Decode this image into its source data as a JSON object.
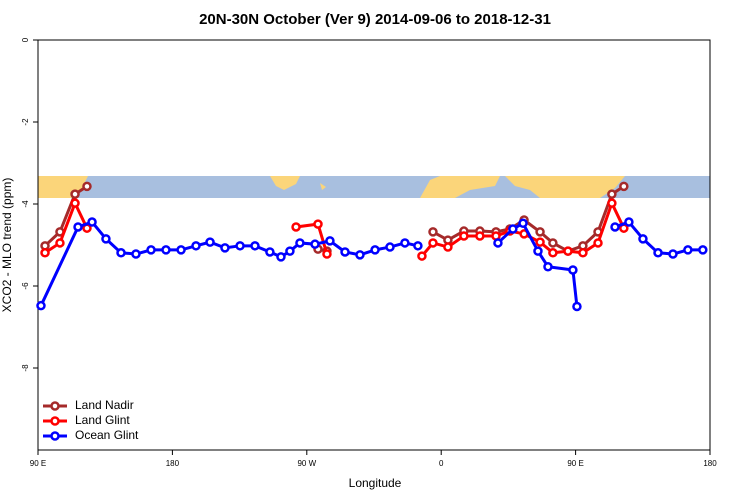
{
  "chart_data": {
    "type": "line",
    "title": "20N-30N October (Ver 9)   2014-09-06 to 2018-12-31",
    "xlabel": "Longitude",
    "ylabel": "XCO2 - MLO trend (ppm)",
    "xlim": [
      90,
      540
    ],
    "xticks": [
      {
        "value": 90,
        "label": "90 E"
      },
      {
        "value": 180,
        "label": "180"
      },
      {
        "value": 270,
        "label": "90 W"
      },
      {
        "value": 360,
        "label": "0"
      },
      {
        "value": 450,
        "label": "90 E"
      },
      {
        "value": 540,
        "label": "180"
      }
    ],
    "ylim": [
      -10,
      0
    ],
    "yticks": [
      0,
      -2,
      -4,
      -6,
      -8
    ],
    "legend": "bottom-left",
    "series": [
      {
        "name": "Land Nadir",
        "color": "#a52a2a",
        "x": [
          94.7,
          104.7,
          114.8,
          122.8,
          200,
          277.5,
          283.5,
          300,
          354.5,
          364.5,
          375.2,
          385.9,
          396.7,
          406,
          415.5,
          426.2,
          434.8,
          444.9,
          454.9,
          465,
          474.3,
          482.3
        ],
        "values": [
          -5.02,
          -4.68,
          -3.76,
          -3.57,
          null,
          -5.1,
          -5.15,
          null,
          -4.68,
          -4.88,
          -4.66,
          -4.66,
          -4.68,
          -4.61,
          -4.39,
          -4.68,
          -4.95,
          -5.15,
          -5.02,
          -4.68,
          -3.76,
          -3.57
        ]
      },
      {
        "name": "Land Glint",
        "color": "#ff0000",
        "x": [
          94.7,
          104.7,
          114.8,
          122.8,
          200,
          262.8,
          277.5,
          283.5,
          320,
          347.1,
          354.5,
          364.5,
          375.2,
          385.9,
          396.7,
          406,
          415.5,
          426.2,
          434.8,
          444.9,
          454.9,
          465,
          474.3,
          482.3
        ],
        "values": [
          -5.19,
          -4.95,
          -3.98,
          -4.59,
          null,
          -4.56,
          -4.49,
          -5.22,
          null,
          -5.27,
          -4.95,
          -5.05,
          -4.78,
          -4.78,
          -4.78,
          -4.66,
          -4.73,
          -4.93,
          -5.19,
          -5.15,
          -5.19,
          -4.95,
          -3.98,
          -4.59
        ]
      },
      {
        "name": "Ocean Glint",
        "color": "#0000ff",
        "x": [
          92,
          116.8,
          126.2,
          135.5,
          145.6,
          155.6,
          165.7,
          175.7,
          185.8,
          195.8,
          205.2,
          215.2,
          225.3,
          235.3,
          245.3,
          252.7,
          258.7,
          265.4,
          275.5,
          285.5,
          295.6,
          305.6,
          315.7,
          325.7,
          335.7,
          344.4,
          370,
          398,
          408,
          414.8,
          424.8,
          431.5,
          448.2,
          450.9,
          460,
          476.4,
          485.7,
          495.1,
          505.2,
          515.2,
          525.2,
          535.2
        ],
        "values": [
          -6.48,
          -4.56,
          -4.44,
          -4.85,
          -5.19,
          -5.22,
          -5.12,
          -5.12,
          -5.12,
          -5.02,
          -4.93,
          -5.07,
          -5.02,
          -5.02,
          -5.17,
          -5.29,
          -5.15,
          -4.95,
          -4.98,
          -4.9,
          -5.17,
          -5.24,
          -5.12,
          -5.05,
          -4.95,
          -5.02,
          null,
          -4.95,
          -4.61,
          -4.47,
          -5.15,
          -5.53,
          -5.61,
          -6.5,
          null,
          -4.56,
          -4.44,
          -4.85,
          -5.19,
          -5.22,
          -5.12,
          -5.12
        ]
      }
    ]
  }
}
